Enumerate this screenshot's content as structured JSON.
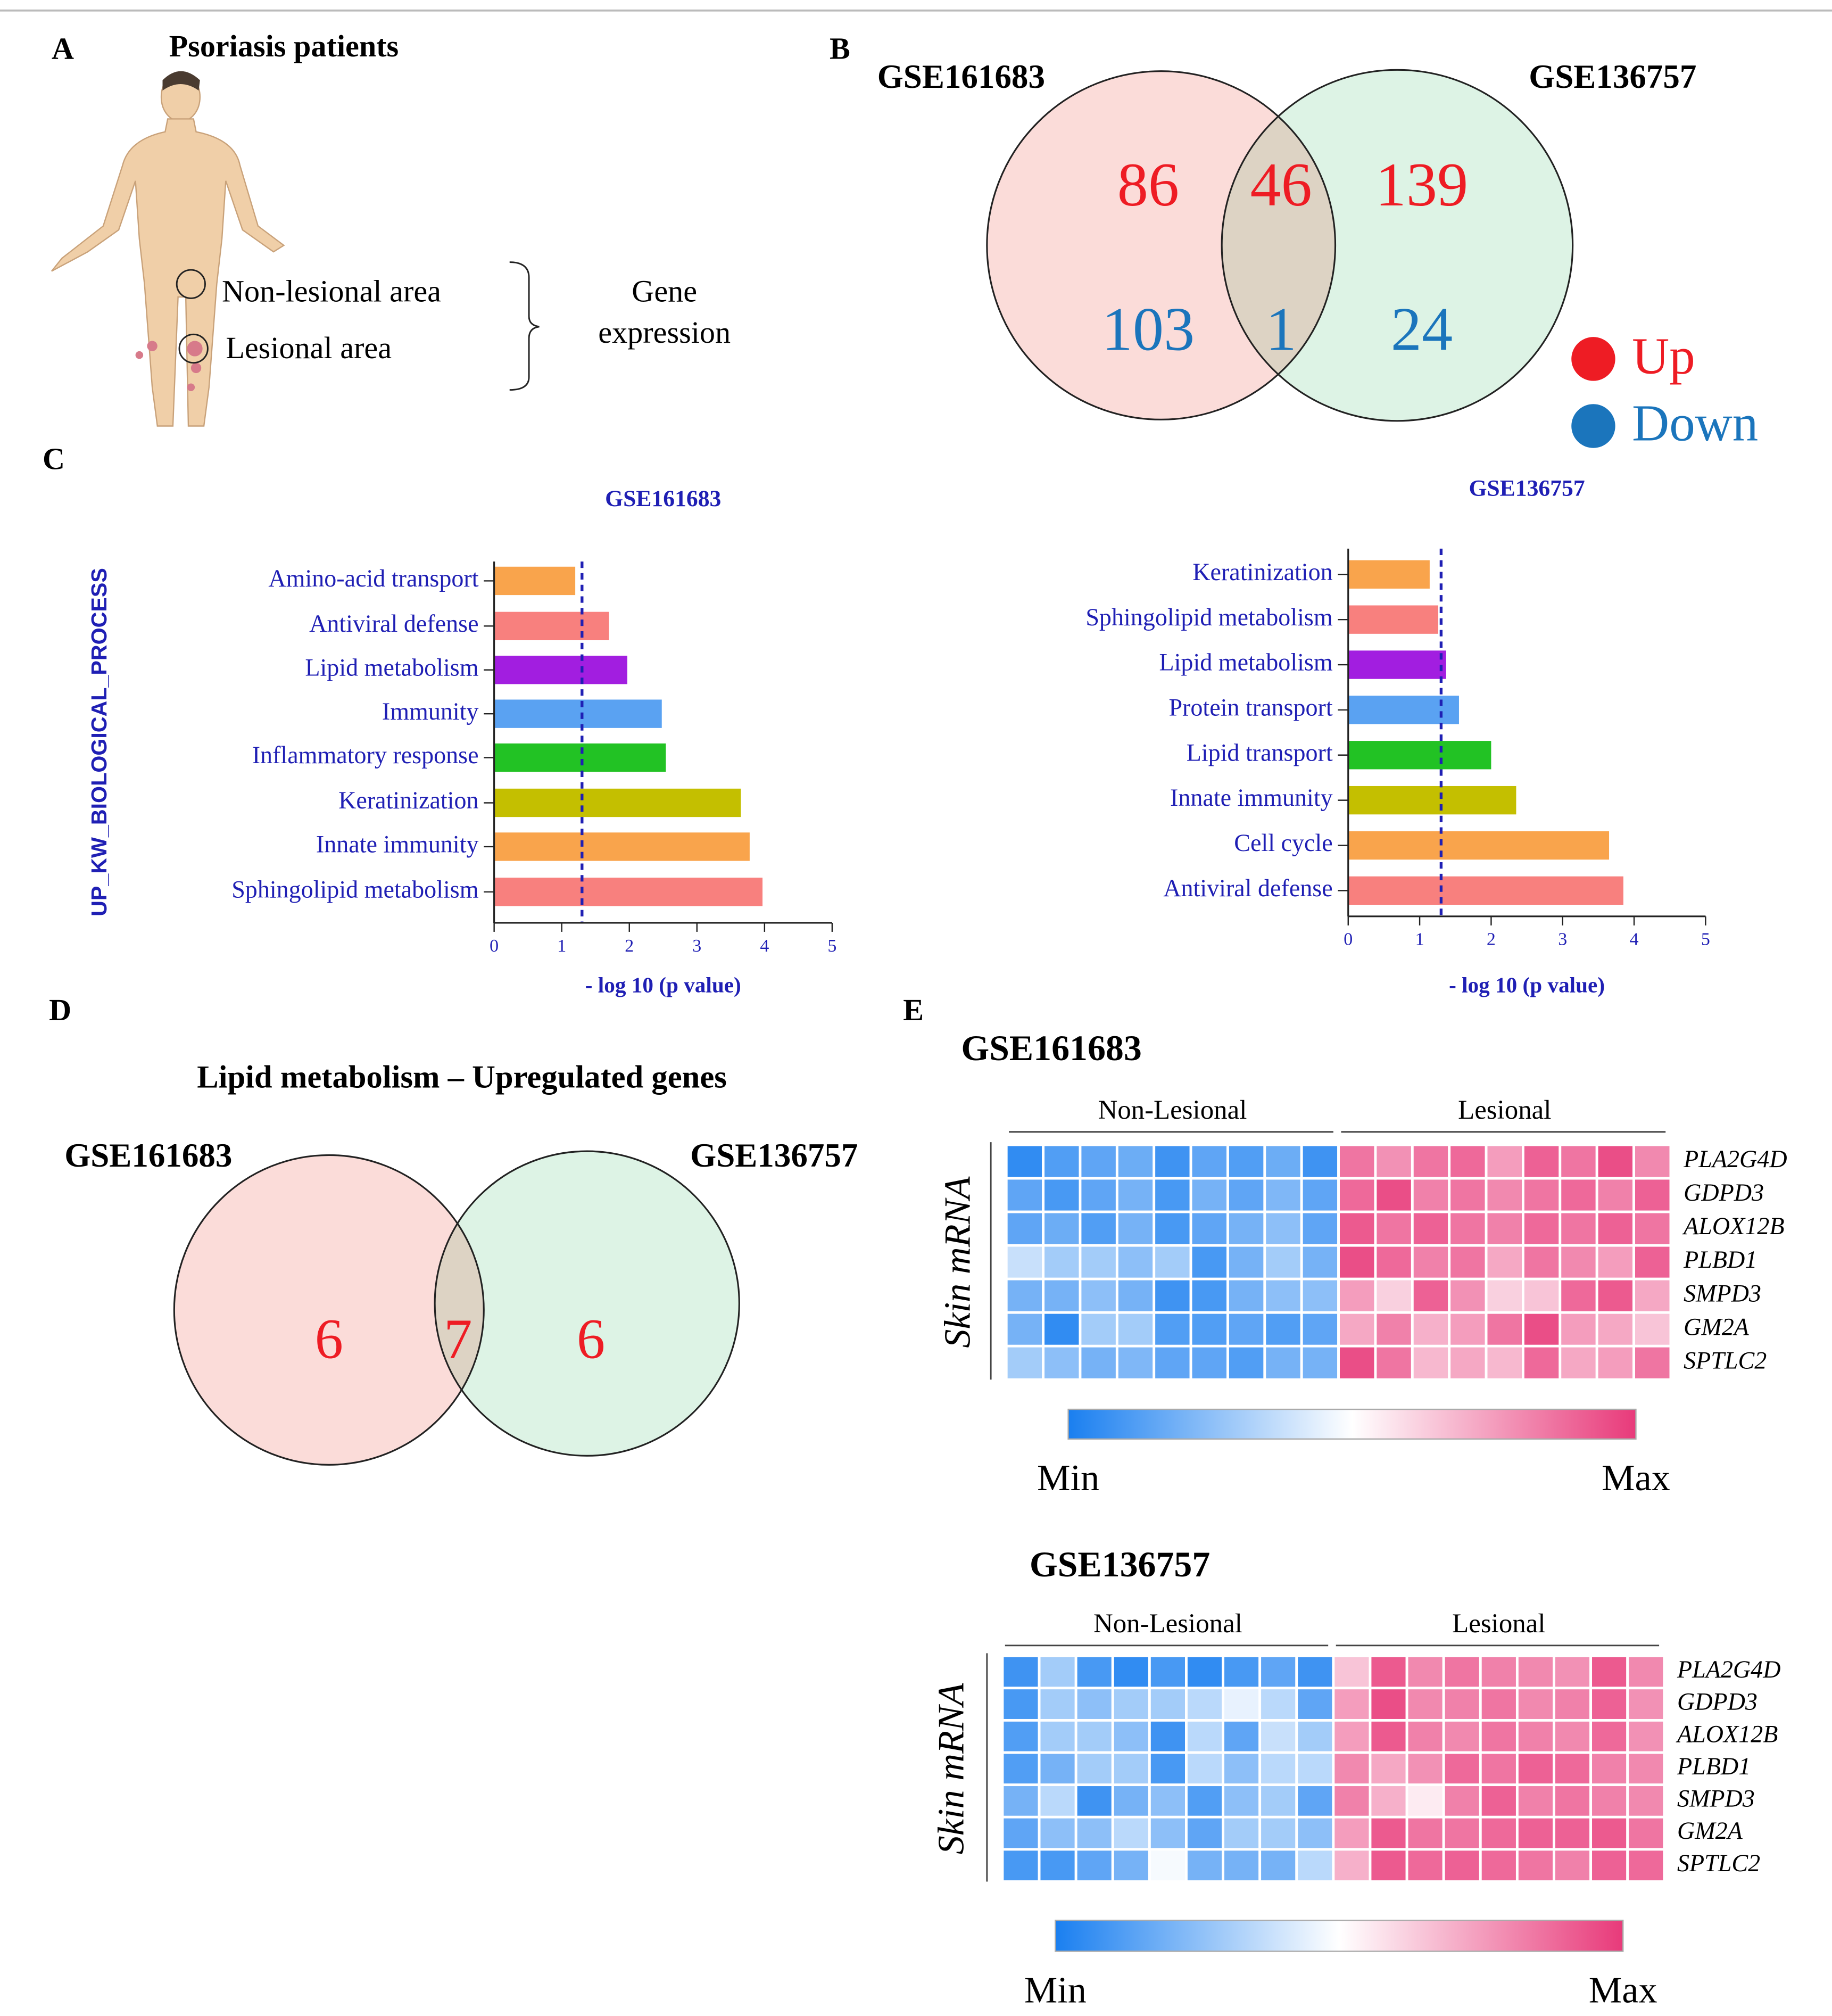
{
  "panel_labels": [
    "A",
    "B",
    "C",
    "D",
    "E"
  ],
  "panel_a": {
    "title": "Psoriasis patients",
    "labels": [
      "Non-lesional area",
      "Lesional area"
    ],
    "bracket_label": [
      "Gene",
      "expression"
    ]
  },
  "chart_data": [
    {
      "type": "venn",
      "sets": [
        "GSE161683",
        "GSE136757"
      ],
      "colors": [
        "#fbdcd9",
        "#ddf3e5",
        "#ddd3c4"
      ],
      "series": [
        {
          "name": "Up",
          "color": "#ee1c24",
          "values": [
            86,
            46,
            139
          ]
        },
        {
          "name": "Down",
          "color": "#1b75bc",
          "values": [
            103,
            1,
            24
          ]
        }
      ]
    },
    {
      "type": "bar",
      "orientation": "horizontal",
      "title": "GSE161683",
      "ylabel": "UP_KW_BIOLOGICAL_PROCESS",
      "xlabel": "- log 10 (p value)",
      "categories": [
        "Amino-acid transport",
        "Antiviral defense",
        "Lipid metabolism",
        "Immunity",
        "Inflammatory response",
        "Keratinization",
        "Innate immunity",
        "Sphingolipid metabolism"
      ],
      "values": [
        1.2,
        1.7,
        1.97,
        2.48,
        2.54,
        3.65,
        3.78,
        3.97
      ],
      "colors": [
        "#f9a44c",
        "#f8807e",
        "#a21ee0",
        "#5aa2f2",
        "#22c224",
        "#c4bf00",
        "#f9a44c",
        "#f8807e"
      ],
      "threshold": 1.3,
      "xlim": [
        0,
        5
      ],
      "xticks": [
        0,
        1,
        2,
        3,
        4,
        5
      ]
    },
    {
      "type": "bar",
      "orientation": "horizontal",
      "title": "GSE136757",
      "xlabel": "- log 10 (p value)",
      "categories": [
        "Keratinization",
        "Sphingolipid metabolism",
        "Lipid metabolism",
        "Protein transport",
        "Lipid transport",
        "Innate immunity",
        "Cell cycle",
        "Antiviral defense"
      ],
      "values": [
        1.14,
        1.26,
        1.37,
        1.55,
        2.0,
        2.35,
        3.65,
        3.85
      ],
      "colors": [
        "#f9a44c",
        "#f8807e",
        "#a21ee0",
        "#5aa2f2",
        "#22c224",
        "#c4bf00",
        "#f9a44c",
        "#f8807e"
      ],
      "threshold": 1.3,
      "xlim": [
        0,
        5
      ],
      "xticks": [
        0,
        1,
        2,
        3,
        4,
        5
      ]
    },
    {
      "type": "venn",
      "title": "Lipid metabolism – Upregulated genes",
      "sets": [
        "GSE161683",
        "GSE136757"
      ],
      "colors": [
        "#fbdcd9",
        "#ddf3e5",
        "#ddd3c4"
      ],
      "series": [
        {
          "name": "Up",
          "color": "#ee1c24",
          "values": [
            6,
            7,
            6
          ]
        }
      ]
    },
    {
      "type": "heatmap",
      "title": "GSE161683",
      "ylabel": "Skin mRNA",
      "groups": [
        "Non-Lesional",
        "Lesional"
      ],
      "rows": [
        "PLA2G4D",
        "GDPD3",
        "ALOX12B",
        "PLBD1",
        "SMPD3",
        "GM2A",
        "SPTLC2"
      ],
      "colors": [
        "#1a7ff0",
        "#ffffff",
        "#e83a7a"
      ],
      "clim": [
        0,
        1
      ],
      "cticks": [
        {
          "value": 0,
          "label": "Min"
        },
        {
          "value": 1,
          "label": "Max"
        }
      ],
      "values": [
        [
          0.05,
          0.12,
          0.15,
          0.18,
          0.08,
          0.15,
          0.12,
          0.18,
          0.08,
          0.85,
          0.78,
          0.85,
          0.88,
          0.75,
          0.9,
          0.85,
          0.95,
          0.8
        ],
        [
          0.15,
          0.1,
          0.15,
          0.2,
          0.1,
          0.2,
          0.15,
          0.22,
          0.15,
          0.88,
          0.95,
          0.82,
          0.85,
          0.8,
          0.85,
          0.88,
          0.82,
          0.9
        ],
        [
          0.15,
          0.18,
          0.12,
          0.2,
          0.1,
          0.15,
          0.2,
          0.25,
          0.15,
          0.92,
          0.85,
          0.9,
          0.85,
          0.82,
          0.88,
          0.85,
          0.9,
          0.85
        ],
        [
          0.38,
          0.3,
          0.3,
          0.25,
          0.3,
          0.1,
          0.2,
          0.3,
          0.2,
          0.95,
          0.88,
          0.82,
          0.85,
          0.72,
          0.85,
          0.8,
          0.75,
          0.9
        ],
        [
          0.2,
          0.2,
          0.25,
          0.2,
          0.08,
          0.1,
          0.2,
          0.25,
          0.25,
          0.75,
          0.62,
          0.9,
          0.78,
          0.62,
          0.65,
          0.88,
          0.92,
          0.72
        ],
        [
          0.2,
          0.05,
          0.3,
          0.3,
          0.12,
          0.12,
          0.15,
          0.12,
          0.15,
          0.72,
          0.82,
          0.7,
          0.75,
          0.85,
          0.95,
          0.75,
          0.72,
          0.65
        ],
        [
          0.3,
          0.25,
          0.2,
          0.22,
          0.15,
          0.15,
          0.12,
          0.2,
          0.2,
          0.95,
          0.85,
          0.68,
          0.72,
          0.68,
          0.88,
          0.72,
          0.75,
          0.85
        ]
      ]
    },
    {
      "type": "heatmap",
      "title": "GSE136757",
      "ylabel": "Skin mRNA",
      "groups": [
        "Non-Lesional",
        "Lesional"
      ],
      "rows": [
        "PLA2G4D",
        "GDPD3",
        "ALOX12B",
        "PLBD1",
        "SMPD3",
        "GM2A",
        "SPTLC2"
      ],
      "colors": [
        "#1a7ff0",
        "#ffffff",
        "#e83a7a"
      ],
      "clim": [
        0,
        1
      ],
      "cticks": [
        {
          "value": 0,
          "label": "Min"
        },
        {
          "value": 1,
          "label": "Max"
        }
      ],
      "values": [
        [
          0.08,
          0.3,
          0.1,
          0.05,
          0.1,
          0.05,
          0.1,
          0.15,
          0.08,
          0.65,
          0.92,
          0.8,
          0.85,
          0.82,
          0.8,
          0.78,
          0.92,
          0.8
        ],
        [
          0.1,
          0.3,
          0.25,
          0.3,
          0.3,
          0.35,
          0.45,
          0.35,
          0.15,
          0.75,
          0.95,
          0.8,
          0.82,
          0.85,
          0.8,
          0.82,
          0.9,
          0.78
        ],
        [
          0.12,
          0.3,
          0.3,
          0.25,
          0.08,
          0.35,
          0.15,
          0.38,
          0.3,
          0.75,
          0.92,
          0.82,
          0.8,
          0.85,
          0.82,
          0.8,
          0.88,
          0.78
        ],
        [
          0.12,
          0.2,
          0.3,
          0.3,
          0.1,
          0.35,
          0.25,
          0.35,
          0.35,
          0.8,
          0.72,
          0.78,
          0.88,
          0.85,
          0.9,
          0.88,
          0.82,
          0.8
        ],
        [
          0.2,
          0.35,
          0.08,
          0.2,
          0.25,
          0.12,
          0.25,
          0.3,
          0.15,
          0.82,
          0.7,
          0.55,
          0.82,
          0.9,
          0.82,
          0.85,
          0.82,
          0.8
        ],
        [
          0.15,
          0.25,
          0.25,
          0.35,
          0.25,
          0.15,
          0.3,
          0.3,
          0.25,
          0.75,
          0.92,
          0.85,
          0.85,
          0.88,
          0.9,
          0.9,
          0.92,
          0.85
        ],
        [
          0.1,
          0.1,
          0.15,
          0.2,
          0.48,
          0.2,
          0.2,
          0.2,
          0.35,
          0.7,
          0.92,
          0.88,
          0.9,
          0.88,
          0.85,
          0.82,
          0.9,
          0.88
        ]
      ]
    }
  ]
}
